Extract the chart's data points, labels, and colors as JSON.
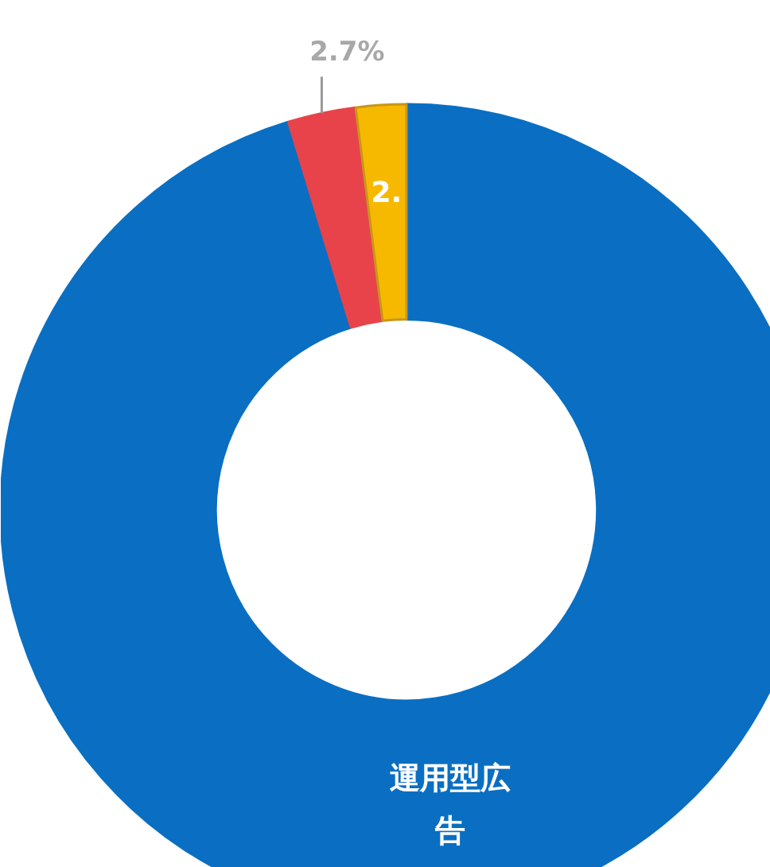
{
  "chart_data": {
    "type": "donut",
    "categories": [
      "運用型広告",
      null,
      null
    ],
    "values": [
      95.3,
      2.7,
      2.0
    ],
    "colors": [
      "#0a6fc2",
      "#e8434a",
      "#f7b900"
    ],
    "value_labels": [
      null,
      "2.7%",
      "2."
    ]
  }
}
